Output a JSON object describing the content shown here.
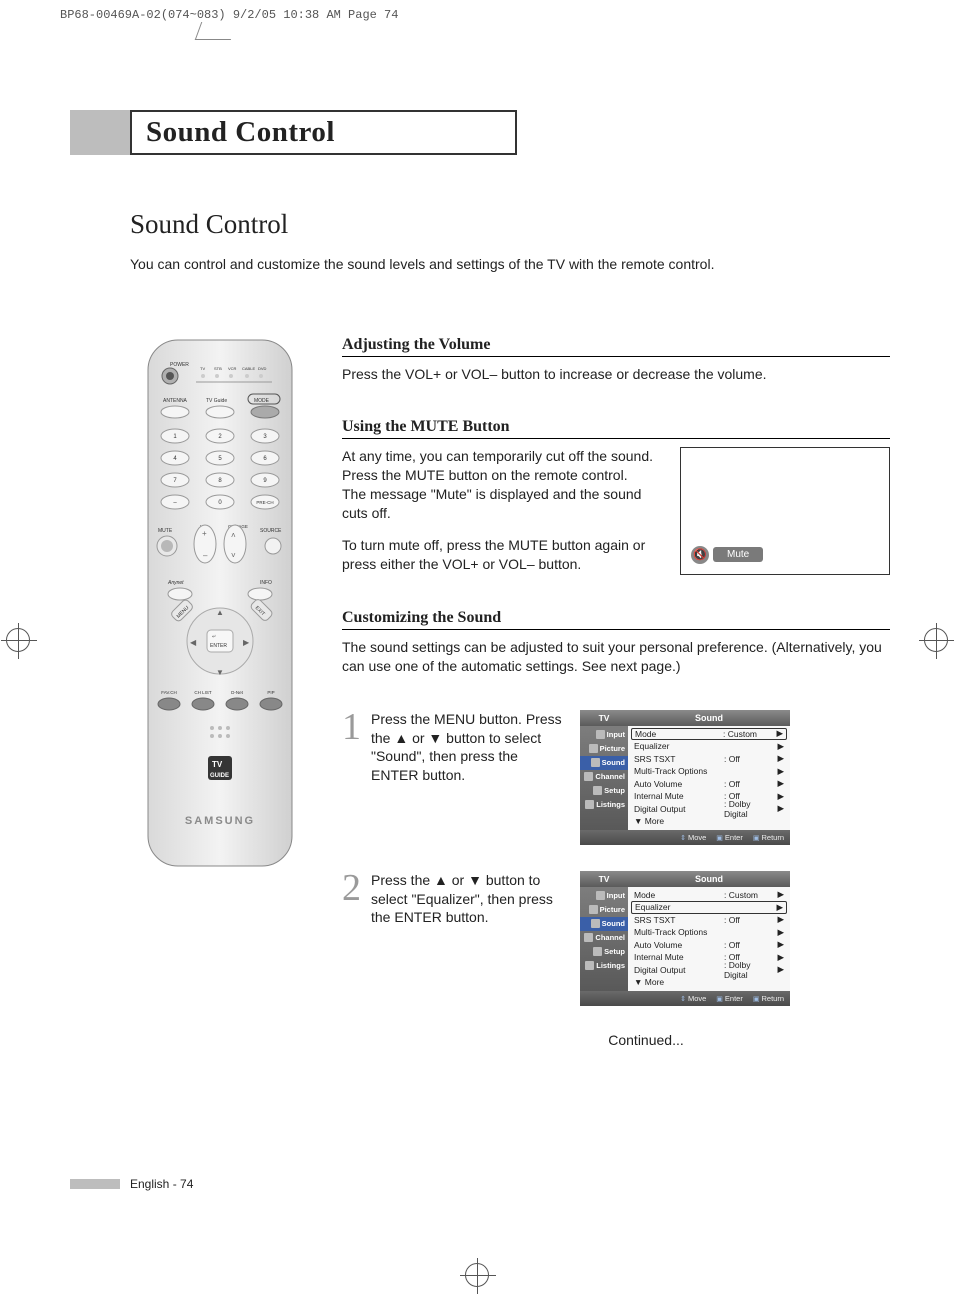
{
  "crop_header": "BP68-00469A-02(074~083)  9/2/05  10:38 AM  Page 74",
  "chapter_title": "Sound Control",
  "section_title": "Sound Control",
  "intro": "You can control and customize the sound levels and settings of the TV with the remote control.",
  "subsections": {
    "adjust": {
      "heading": "Adjusting the Volume",
      "body": "Press the VOL+ or VOL– button to increase or decrease the volume."
    },
    "mute": {
      "heading": "Using the MUTE Button",
      "body1": "At any time, you can temporarily cut off the sound.\nPress the MUTE button on the remote control.\nThe message \"Mute\" is displayed and the sound cuts off.",
      "body2": "To turn mute off, press the MUTE button again or press either the VOL+ or VOL– button.",
      "osd_label": "Mute"
    },
    "customize": {
      "heading": "Customizing the Sound",
      "body": "The sound settings can be adjusted to suit your personal preference. (Alternatively, you can use one of the automatic settings. See next page.)"
    }
  },
  "steps": [
    {
      "num": "1",
      "text": "Press the MENU button. Press the ▲ or ▼ button to select \"Sound\", then press the ENTER button."
    },
    {
      "num": "2",
      "text": "Press the ▲ or ▼ button to select \"Equalizer\", then press the ENTER button."
    }
  ],
  "continued": "Continued...",
  "footer": "English - 74",
  "osd": {
    "tv_label": "TV",
    "menu_title": "Sound",
    "sidebar": [
      "Input",
      "Picture",
      "Sound",
      "Channel",
      "Setup",
      "Listings"
    ],
    "selected_sidebar_index": 2,
    "rows": [
      {
        "label": "Mode",
        "value": ": Custom"
      },
      {
        "label": "Equalizer",
        "value": ""
      },
      {
        "label": "SRS TSXT",
        "value": ": Off"
      },
      {
        "label": "Multi-Track Options",
        "value": ""
      },
      {
        "label": "Auto Volume",
        "value": ": Off"
      },
      {
        "label": "Internal Mute",
        "value": ": Off"
      },
      {
        "label": "Digital Output",
        "value": ": Dolby Digital"
      },
      {
        "label": "▼ More",
        "value": "",
        "no_arrow": true
      }
    ],
    "highlight_row_step1": 0,
    "highlight_row_step2": 1,
    "footer_actions": [
      "Move",
      "Enter",
      "Return"
    ]
  },
  "remote": {
    "power_label": "POWER",
    "mode_row": [
      "TV",
      "STB",
      "VCR",
      "CABLE",
      "DVD"
    ],
    "antenna": "ANTENNA",
    "tvguide": "TV Guide",
    "mode_btn": "MODE",
    "numpad": [
      [
        "1",
        "2",
        "3"
      ],
      [
        "4",
        "5",
        "6"
      ],
      [
        "7",
        "8",
        "9"
      ],
      [
        "–",
        "0",
        "PRE-CH"
      ]
    ],
    "vol": "VOL",
    "chpage": "CH/PAGE",
    "mute": "MUTE",
    "source": "SOURCE",
    "anynet": "Anynet",
    "info": "INFO",
    "menu": "MENU",
    "exit": "EXIT",
    "enter": "ENTER",
    "bottom_row": [
      "FAV.CH",
      "CH LIST",
      "D-Net",
      "PIP"
    ],
    "tvguide_logo_top": "TV",
    "tvguide_logo_bot": "GUIDE",
    "brand": "SAMSUNG"
  },
  "colors": {
    "title_box_border": "#333333",
    "grey_stub": "#bdbdbd",
    "step_number": "#9a9a9a",
    "osd_header_grad_from": "#8a8a8a",
    "osd_header_grad_to": "#5a5a5a",
    "osd_selected": "#3a5fa8",
    "mute_pill_bg": "#7a7a7a",
    "text": "#222222"
  }
}
